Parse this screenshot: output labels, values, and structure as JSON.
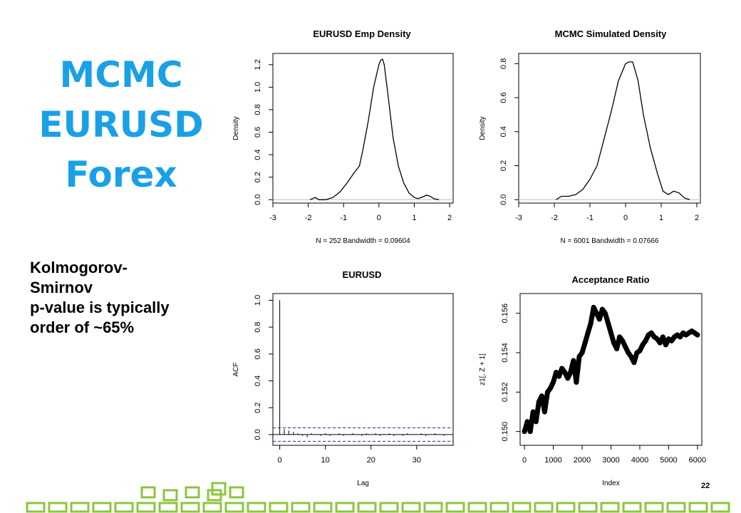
{
  "slide": {
    "title_lines": [
      "MCMC",
      "EURUSD",
      "Forex"
    ],
    "ks_lines": [
      "Kolmogorov-",
      "Smirnov",
      "p-value is typically",
      "order of ~65%"
    ],
    "page_number": "22",
    "colors": {
      "title": "#1aa0e6",
      "decoration": "#8cc63f"
    }
  },
  "chart_data": [
    {
      "type": "line",
      "title": "EURUSD Emp Density",
      "xlabel": "N = 252   Bandwidth = 0.09604",
      "ylabel": "Density",
      "xlim": [
        -3,
        2.1
      ],
      "ylim": [
        -0.03,
        1.3
      ],
      "xticks": [
        "-3",
        "-2",
        "-1",
        "0",
        "1",
        "2"
      ],
      "yticks": [
        "0.0",
        "0.2",
        "0.4",
        "0.6",
        "0.8",
        "1.0",
        "1.2"
      ],
      "x": [
        -1.95,
        -1.8,
        -1.7,
        -1.5,
        -1.3,
        -1.1,
        -0.9,
        -0.7,
        -0.55,
        -0.45,
        -0.3,
        -0.15,
        0.0,
        0.05,
        0.1,
        0.15,
        0.25,
        0.4,
        0.55,
        0.7,
        0.85,
        1.0,
        1.1,
        1.2,
        1.35,
        1.45,
        1.55,
        1.7
      ],
      "y": [
        0.0,
        0.02,
        0.0,
        0.0,
        0.02,
        0.07,
        0.15,
        0.24,
        0.3,
        0.45,
        0.7,
        1.0,
        1.2,
        1.24,
        1.25,
        1.2,
        0.95,
        0.55,
        0.3,
        0.15,
        0.06,
        0.02,
        0.01,
        0.02,
        0.04,
        0.03,
        0.01,
        0.0
      ],
      "zero_line": true
    },
    {
      "type": "line",
      "title": "MCMC Simulated Density",
      "xlabel": "N = 6001   Bandwidth = 0.07666",
      "ylabel": "Density",
      "xlim": [
        -3,
        2.1
      ],
      "ylim": [
        -0.02,
        0.86
      ],
      "xticks": [
        "-3",
        "-2",
        "-1",
        "0",
        "1",
        "2"
      ],
      "yticks": [
        "0.0",
        "0.2",
        "0.4",
        "0.6",
        "0.8"
      ],
      "x": [
        -1.95,
        -1.8,
        -1.6,
        -1.4,
        -1.2,
        -1.0,
        -0.8,
        -0.6,
        -0.4,
        -0.2,
        0.0,
        0.1,
        0.2,
        0.35,
        0.5,
        0.7,
        0.9,
        1.05,
        1.2,
        1.35,
        1.5,
        1.65,
        1.8
      ],
      "y": [
        0.0,
        0.02,
        0.02,
        0.03,
        0.06,
        0.12,
        0.2,
        0.36,
        0.52,
        0.7,
        0.8,
        0.81,
        0.81,
        0.7,
        0.5,
        0.3,
        0.15,
        0.05,
        0.03,
        0.05,
        0.04,
        0.01,
        0.0
      ],
      "zero_line": true
    },
    {
      "type": "bar",
      "title": "EURUSD",
      "xlabel": "Lag",
      "ylabel": "ACF",
      "xlim": [
        -1.5,
        38
      ],
      "ylim": [
        -0.08,
        1.05
      ],
      "xticks": [
        "0",
        "10",
        "20",
        "30"
      ],
      "yticks": [
        "0.0",
        "0.2",
        "0.4",
        "0.6",
        "0.8",
        "1.0"
      ],
      "lags": [
        0,
        1,
        2,
        3,
        4,
        5,
        6,
        7,
        8,
        9,
        10,
        11,
        12,
        13,
        14,
        15,
        16,
        17,
        18,
        19,
        20,
        21,
        22,
        23,
        24,
        25,
        26,
        27,
        28,
        29,
        30,
        31,
        32,
        33,
        34,
        35,
        36,
        37
      ],
      "values": [
        1.0,
        0.04,
        0.03,
        0.02,
        0.01,
        -0.01,
        -0.02,
        0.01,
        0.0,
        -0.01,
        0.01,
        -0.01,
        0.0,
        0.01,
        -0.01,
        0.0,
        0.01,
        0.0,
        -0.01,
        0.01,
        0.0,
        0.01,
        -0.01,
        0.0,
        0.01,
        -0.01,
        0.0,
        -0.01,
        0.01,
        0.0,
        0.0,
        0.01,
        -0.01,
        0.0,
        0.01,
        0.0,
        -0.01,
        0.0
      ],
      "conf_band": 0.05
    },
    {
      "type": "scatter",
      "title": "Acceptance Ratio",
      "xlabel": "Index",
      "ylabel": "z1[, Z + 1]",
      "xlim": [
        -150,
        6150
      ],
      "ylim": [
        0.1493,
        0.157
      ],
      "xticks": [
        "0",
        "1000",
        "2000",
        "3000",
        "4000",
        "5000",
        "6000"
      ],
      "yticks": [
        "0.150",
        "0.152",
        "0.154",
        "0.156"
      ],
      "x": [
        0,
        100,
        200,
        300,
        400,
        500,
        600,
        700,
        800,
        900,
        1000,
        1100,
        1200,
        1300,
        1400,
        1500,
        1600,
        1700,
        1800,
        1900,
        2000,
        2100,
        2200,
        2300,
        2400,
        2500,
        2600,
        2700,
        2800,
        2900,
        3000,
        3100,
        3200,
        3300,
        3400,
        3500,
        3600,
        3700,
        3800,
        3900,
        4000,
        4100,
        4200,
        4300,
        4400,
        4500,
        4600,
        4700,
        4800,
        4900,
        5000,
        5100,
        5200,
        5300,
        5400,
        5500,
        5600,
        5700,
        5800,
        5900,
        6000
      ],
      "y": [
        0.15,
        0.1505,
        0.15,
        0.151,
        0.1505,
        0.1515,
        0.1518,
        0.151,
        0.152,
        0.1522,
        0.1525,
        0.153,
        0.1528,
        0.1532,
        0.153,
        0.1527,
        0.153,
        0.1536,
        0.1525,
        0.1538,
        0.154,
        0.1545,
        0.155,
        0.1555,
        0.1563,
        0.156,
        0.1557,
        0.1562,
        0.156,
        0.1555,
        0.155,
        0.1545,
        0.1542,
        0.1548,
        0.1546,
        0.1543,
        0.154,
        0.1538,
        0.1535,
        0.154,
        0.1541,
        0.1544,
        0.1546,
        0.1549,
        0.155,
        0.1548,
        0.1547,
        0.1545,
        0.1548,
        0.1544,
        0.1547,
        0.1546,
        0.1548,
        0.1549,
        0.1548,
        0.155,
        0.1549,
        0.155,
        0.1551,
        0.155,
        0.1549
      ]
    }
  ]
}
